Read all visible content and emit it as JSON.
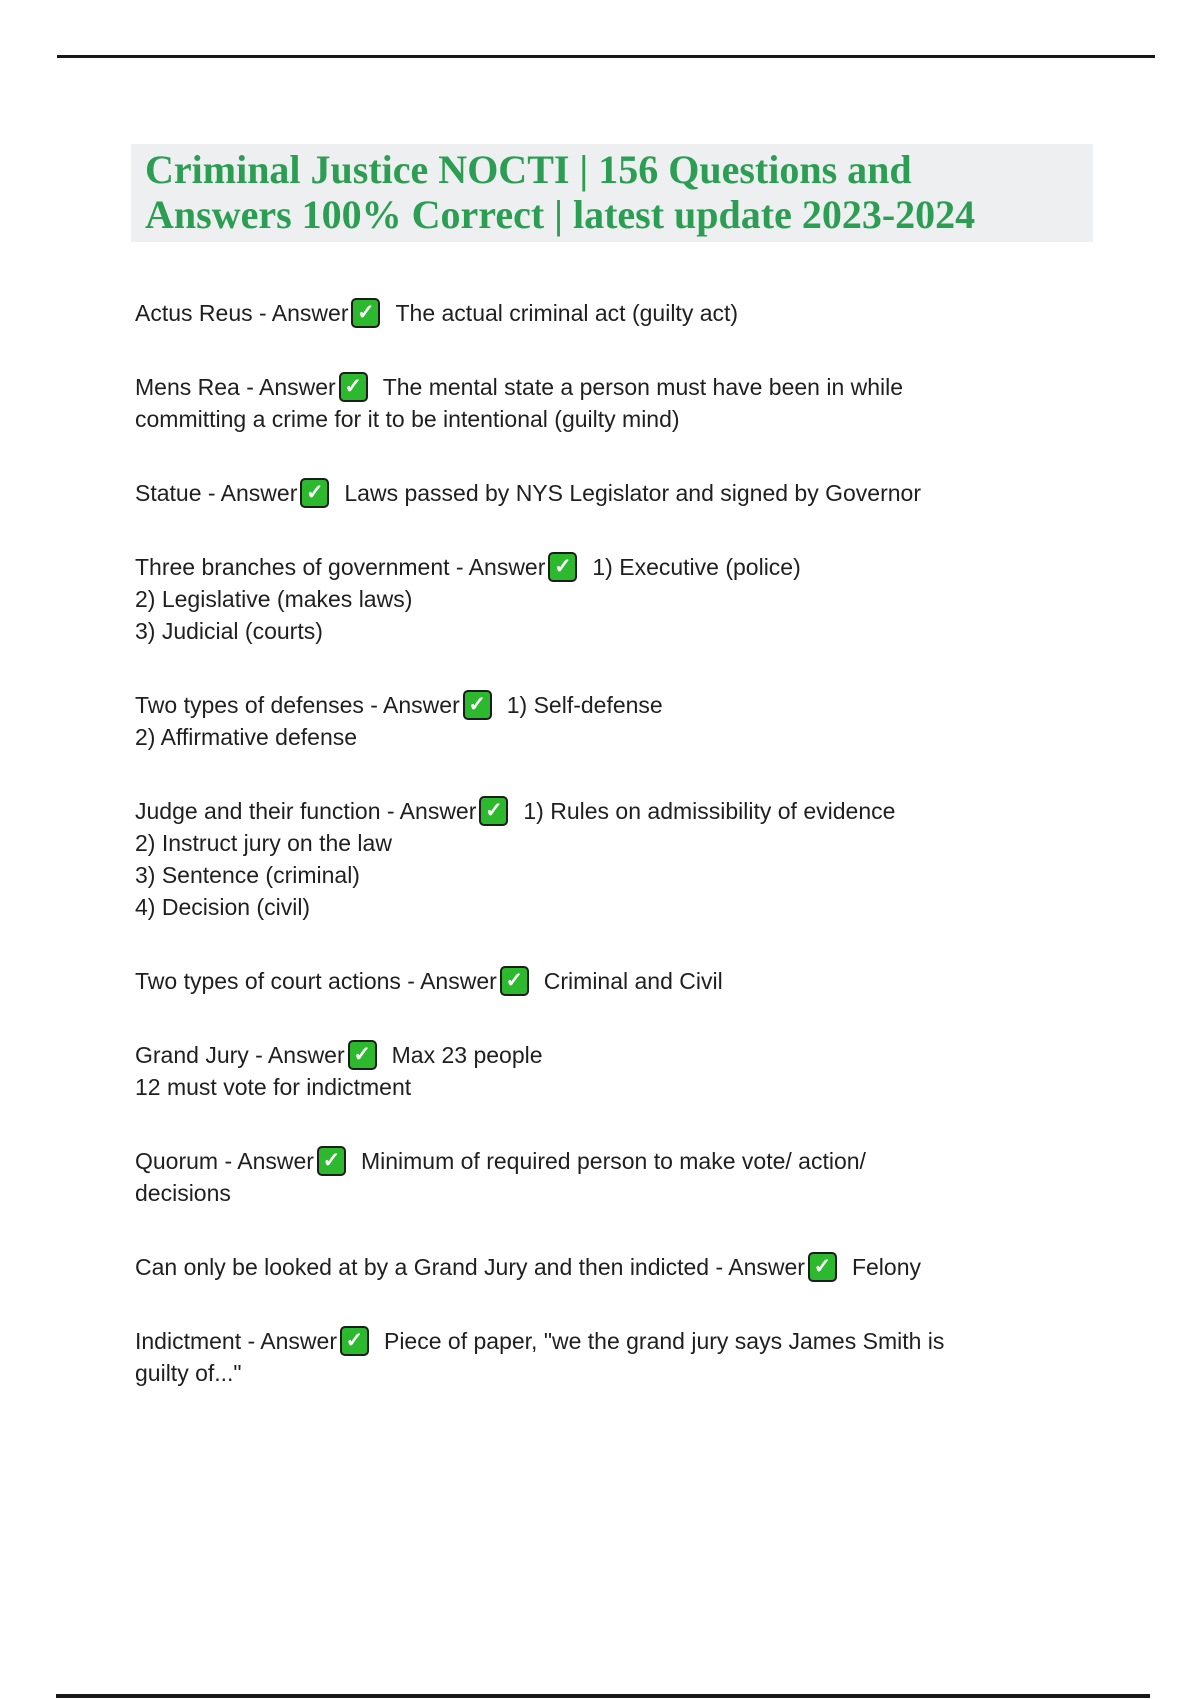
{
  "title": {
    "line1": "Criminal Justice NOCTI | 156 Questions and",
    "line2": "Answers 100% Correct | latest update 2023-2024",
    "color": "#2c9e53",
    "highlight_color": "#edeff0"
  },
  "labels": {
    "answer_suffix": " - Answer"
  },
  "icons": {
    "check_glyph": "✓",
    "check_fill": "#2db92d",
    "check_border": "#1d1d1d"
  },
  "text_color": "#1f1f1f",
  "rule_color": "#181818",
  "entries": [
    {
      "term": "Actus Reus",
      "answer": "The actual criminal act (guilty act)"
    },
    {
      "term": "Mens Rea",
      "answer": "The mental state a person must have been in while\ncommitting a crime for it to be intentional (guilty mind)"
    },
    {
      "term": "Statue",
      "answer": "Laws passed by NYS Legislator and signed by Governor"
    },
    {
      "term": "Three branches of government",
      "answer": "1) Executive (police)\n2) Legislative (makes laws)\n3) Judicial (courts)"
    },
    {
      "term": "Two types of defenses",
      "answer": "1) Self-defense\n2) Affirmative defense"
    },
    {
      "term": "Judge and their function",
      "answer": "1) Rules on admissibility of evidence\n2) Instruct jury on the law\n3) Sentence (criminal)\n4) Decision (civil)"
    },
    {
      "term": "Two types of court actions",
      "answer": "Criminal and Civil"
    },
    {
      "term": "Grand Jury",
      "answer": "Max 23 people\n12 must vote for indictment"
    },
    {
      "term": "Quorum",
      "answer": "Minimum of required person to make vote/ action/\ndecisions"
    },
    {
      "term": "Can only be looked at by a Grand Jury and then indicted",
      "answer": "Felony"
    },
    {
      "term": "Indictment",
      "answer": "Piece of paper, \"we the grand jury says James Smith is\nguilty of...\""
    }
  ]
}
